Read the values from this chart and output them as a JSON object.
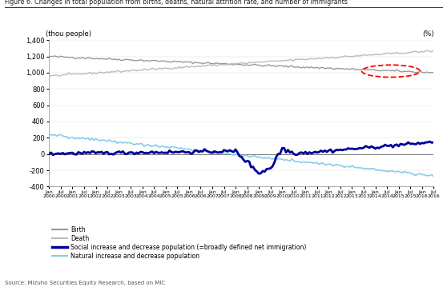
{
  "title": "Figure 6. Changes in total population from births, deaths, natural attrition rate, and number of immigrants",
  "ylabel_left": "(thou people)",
  "ylabel_right": "(%)",
  "source": "Source: Mizuho Securities Equity Research, based on MIC",
  "legend": [
    {
      "label": "Birth",
      "color": "#999999",
      "lw": 1.0
    },
    {
      "label": "Death",
      "color": "#bbbbbb",
      "lw": 1.0
    },
    {
      "label": "Social increase and decrease population (=broadly defined net immigration)",
      "color": "#000099",
      "lw": 2.0
    },
    {
      "label": "Natural increase and decrease population",
      "color": "#88ccee",
      "lw": 1.2
    }
  ],
  "ylim": [
    -400,
    1400
  ],
  "yticks": [
    -400,
    -200,
    0,
    200,
    400,
    600,
    800,
    1000,
    1200,
    1400
  ],
  "bg_color": "#ffffff"
}
